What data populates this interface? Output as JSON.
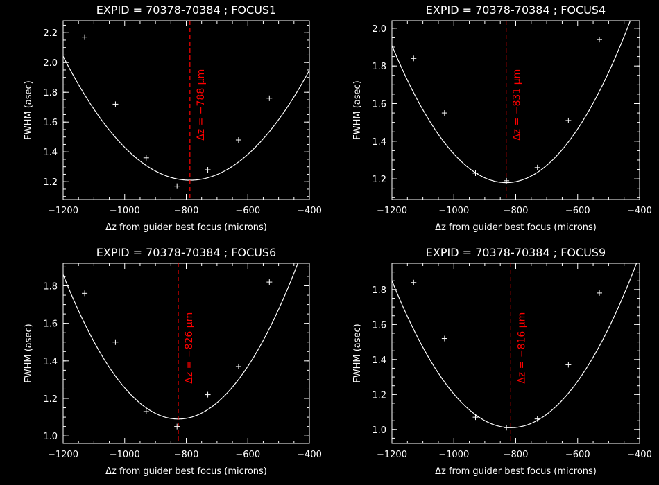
{
  "chart_data": [
    {
      "type": "scatter",
      "title": "EXPID = 70378-70384 ; FOCUS1",
      "xlabel": "Δz from guider best focus (microns)",
      "ylabel": "FWHM (asec)",
      "xlim": [
        -1200,
        -400
      ],
      "ylim": [
        1.08,
        2.28
      ],
      "xticks": [
        -1200,
        -1000,
        -800,
        -600,
        -400
      ],
      "xtick_labels": [
        "−1200",
        "−1000",
        "−800",
        "−600",
        "−400"
      ],
      "yticks": [
        1.2,
        1.4,
        1.6,
        1.8,
        2.0,
        2.2
      ],
      "ytick_labels": [
        "1.2",
        "1.4",
        "1.6",
        "1.8",
        "2.0",
        "2.2"
      ],
      "points": [
        {
          "x": -1130,
          "y": 2.17
        },
        {
          "x": -1030,
          "y": 1.72
        },
        {
          "x": -930,
          "y": 1.36
        },
        {
          "x": -830,
          "y": 1.17
        },
        {
          "x": -730,
          "y": 1.28
        },
        {
          "x": -630,
          "y": 1.48
        },
        {
          "x": -530,
          "y": 1.76
        }
      ],
      "fit": {
        "type": "parabola",
        "x_min": -788,
        "y_min": 1.21,
        "a": 4.9e-06
      },
      "best_focus": {
        "x": -788,
        "label": "Δz = −788 μm",
        "color": "#ff0000"
      }
    },
    {
      "type": "scatter",
      "title": "EXPID = 70378-70384 ; FOCUS4",
      "xlabel": "Δz from guider best focus (microns)",
      "ylabel": "FWHM (asec)",
      "xlim": [
        -1200,
        -400
      ],
      "ylim": [
        1.09,
        2.04
      ],
      "xticks": [
        -1200,
        -1000,
        -800,
        -600,
        -400
      ],
      "xtick_labels": [
        "−1200",
        "−1000",
        "−800",
        "−600",
        "−400"
      ],
      "yticks": [
        1.2,
        1.4,
        1.6,
        1.8,
        2.0
      ],
      "ytick_labels": [
        "1.2",
        "1.4",
        "1.6",
        "1.8",
        "2.0"
      ],
      "points": [
        {
          "x": -1130,
          "y": 1.84
        },
        {
          "x": -1030,
          "y": 1.55
        },
        {
          "x": -930,
          "y": 1.23
        },
        {
          "x": -830,
          "y": 1.19
        },
        {
          "x": -730,
          "y": 1.26
        },
        {
          "x": -630,
          "y": 1.51
        },
        {
          "x": -530,
          "y": 1.94
        }
      ],
      "fit": {
        "type": "parabola",
        "x_min": -831,
        "y_min": 1.18,
        "a": 5.35e-06
      },
      "best_focus": {
        "x": -831,
        "label": "Δz = −831 μm",
        "color": "#ff0000"
      }
    },
    {
      "type": "scatter",
      "title": "EXPID = 70378-70384 ; FOCUS6",
      "xlabel": "Δz from guider best focus (microns)",
      "ylabel": "FWHM (asec)",
      "xlim": [
        -1200,
        -400
      ],
      "ylim": [
        0.96,
        1.92
      ],
      "xticks": [
        -1200,
        -1000,
        -800,
        -600,
        -400
      ],
      "xtick_labels": [
        "−1200",
        "−1000",
        "−800",
        "−600",
        "−400"
      ],
      "yticks": [
        1.0,
        1.2,
        1.4,
        1.6,
        1.8
      ],
      "ytick_labels": [
        "1.0",
        "1.2",
        "1.4",
        "1.6",
        "1.8"
      ],
      "points": [
        {
          "x": -1130,
          "y": 1.76
        },
        {
          "x": -1030,
          "y": 1.5
        },
        {
          "x": -930,
          "y": 1.13
        },
        {
          "x": -830,
          "y": 1.05
        },
        {
          "x": -730,
          "y": 1.22
        },
        {
          "x": -630,
          "y": 1.37
        },
        {
          "x": -530,
          "y": 1.82
        }
      ],
      "fit": {
        "type": "parabola",
        "x_min": -826,
        "y_min": 1.09,
        "a": 5.5e-06
      },
      "best_focus": {
        "x": -826,
        "label": "Δz = −826 μm",
        "color": "#ff0000"
      }
    },
    {
      "type": "scatter",
      "title": "EXPID = 70378-70384 ; FOCUS9",
      "xlabel": "Δz from guider best focus (microns)",
      "ylabel": "FWHM (asec)",
      "xlim": [
        -1200,
        -400
      ],
      "ylim": [
        0.92,
        1.95
      ],
      "xticks": [
        -1200,
        -1000,
        -800,
        -600,
        -400
      ],
      "xtick_labels": [
        "−1200",
        "−1000",
        "−800",
        "−600",
        "−400"
      ],
      "yticks": [
        1.0,
        1.2,
        1.4,
        1.6,
        1.8
      ],
      "ytick_labels": [
        "1.0",
        "1.2",
        "1.4",
        "1.6",
        "1.8"
      ],
      "points": [
        {
          "x": -1130,
          "y": 1.84
        },
        {
          "x": -1030,
          "y": 1.52
        },
        {
          "x": -930,
          "y": 1.07
        },
        {
          "x": -830,
          "y": 1.01
        },
        {
          "x": -730,
          "y": 1.06
        },
        {
          "x": -630,
          "y": 1.37
        },
        {
          "x": -530,
          "y": 1.78
        }
      ],
      "fit": {
        "type": "parabola",
        "x_min": -816,
        "y_min": 1.01,
        "a": 5.7e-06
      },
      "best_focus": {
        "x": -816,
        "label": "Δz = −816 μm",
        "color": "#ff0000"
      }
    }
  ]
}
